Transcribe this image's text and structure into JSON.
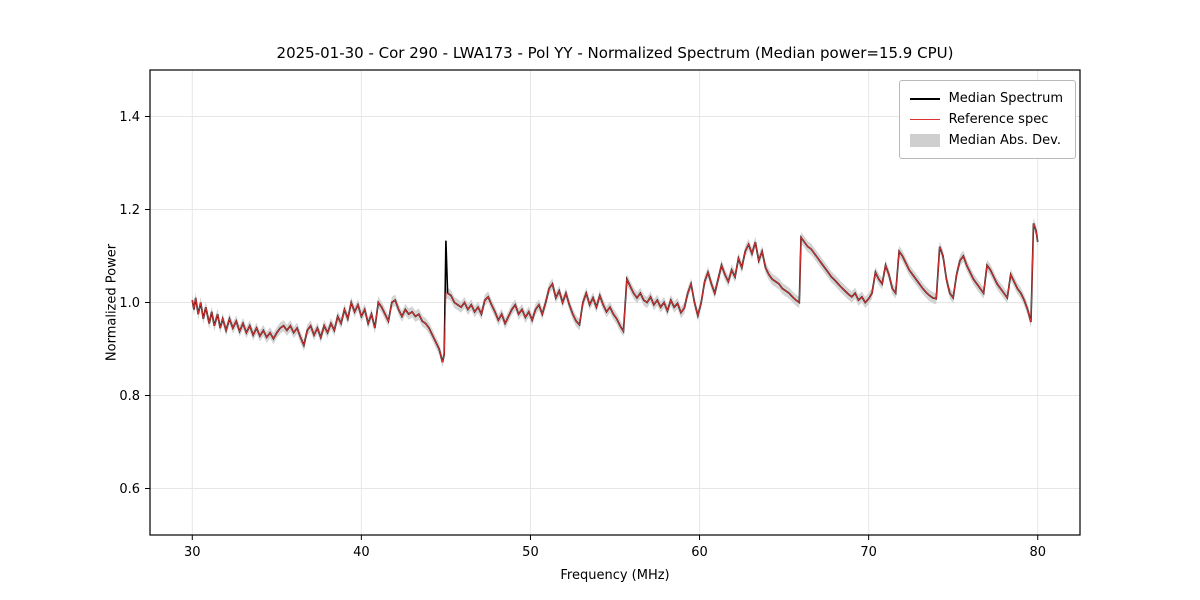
{
  "chart_data": {
    "type": "line",
    "title": "2025-01-30 - Cor 290 - LWA173 - Pol YY - Normalized Spectrum (Median power=15.9 CPU)",
    "xlabel": "Frequency (MHz)",
    "ylabel": "Normalized Power",
    "axes": {
      "xlim": [
        27.5,
        82.5
      ],
      "ylim": [
        0.5,
        1.5
      ],
      "xticks": [
        30,
        40,
        50,
        60,
        70,
        80
      ],
      "xtick_labels": [
        "30",
        "40",
        "50",
        "60",
        "70",
        "80"
      ],
      "yticks": [
        0.6,
        0.8,
        1.0,
        1.2,
        1.4
      ],
      "ytick_labels": [
        "0.6",
        "0.8",
        "1.0",
        "1.2",
        "1.4"
      ],
      "grid": true,
      "legend_position": "upper right"
    },
    "colors": {
      "median_line": "#000000",
      "reference_line": "#dd3333",
      "band_fill": "#cfcfcf",
      "grid": "#e6e6e6",
      "spine": "#000000"
    },
    "legend": [
      {
        "label": "Median Spectrum",
        "type": "line",
        "color": "#000000",
        "lw": 2
      },
      {
        "label": "Reference spec",
        "type": "line",
        "color": "#dd3333",
        "lw": 1
      },
      {
        "label": "Median Abs. Dev.",
        "type": "band",
        "color": "#cfcfcf"
      }
    ],
    "series": [
      {
        "name": "Median Spectrum",
        "points": [
          [
            30.0,
            1.005
          ],
          [
            30.1,
            0.985
          ],
          [
            30.2,
            1.01
          ],
          [
            30.35,
            0.975
          ],
          [
            30.5,
            1.0
          ],
          [
            30.65,
            0.965
          ],
          [
            30.8,
            0.99
          ],
          [
            31.0,
            0.955
          ],
          [
            31.15,
            0.98
          ],
          [
            31.3,
            0.95
          ],
          [
            31.5,
            0.975
          ],
          [
            31.65,
            0.945
          ],
          [
            31.8,
            0.965
          ],
          [
            32.0,
            0.94
          ],
          [
            32.2,
            0.965
          ],
          [
            32.4,
            0.945
          ],
          [
            32.6,
            0.96
          ],
          [
            32.8,
            0.938
          ],
          [
            33.0,
            0.955
          ],
          [
            33.2,
            0.935
          ],
          [
            33.4,
            0.95
          ],
          [
            33.6,
            0.93
          ],
          [
            33.8,
            0.945
          ],
          [
            34.0,
            0.928
          ],
          [
            34.2,
            0.94
          ],
          [
            34.4,
            0.925
          ],
          [
            34.6,
            0.935
          ],
          [
            34.8,
            0.922
          ],
          [
            35.0,
            0.935
          ],
          [
            35.2,
            0.945
          ],
          [
            35.4,
            0.95
          ],
          [
            35.6,
            0.94
          ],
          [
            35.8,
            0.95
          ],
          [
            36.0,
            0.935
          ],
          [
            36.2,
            0.945
          ],
          [
            36.4,
            0.925
          ],
          [
            36.6,
            0.908
          ],
          [
            36.8,
            0.94
          ],
          [
            37.0,
            0.95
          ],
          [
            37.2,
            0.93
          ],
          [
            37.4,
            0.945
          ],
          [
            37.6,
            0.925
          ],
          [
            37.8,
            0.95
          ],
          [
            38.0,
            0.935
          ],
          [
            38.2,
            0.955
          ],
          [
            38.4,
            0.94
          ],
          [
            38.6,
            0.97
          ],
          [
            38.8,
            0.955
          ],
          [
            39.0,
            0.985
          ],
          [
            39.2,
            0.965
          ],
          [
            39.4,
            1.0
          ],
          [
            39.6,
            0.98
          ],
          [
            39.8,
            0.995
          ],
          [
            40.0,
            0.97
          ],
          [
            40.2,
            0.985
          ],
          [
            40.4,
            0.955
          ],
          [
            40.6,
            0.975
          ],
          [
            40.8,
            0.945
          ],
          [
            41.0,
            1.0
          ],
          [
            41.2,
            0.99
          ],
          [
            41.4,
            0.975
          ],
          [
            41.6,
            0.96
          ],
          [
            41.8,
            1.0
          ],
          [
            42.0,
            1.005
          ],
          [
            42.2,
            0.985
          ],
          [
            42.4,
            0.97
          ],
          [
            42.6,
            0.985
          ],
          [
            42.8,
            0.975
          ],
          [
            43.0,
            0.98
          ],
          [
            43.2,
            0.97
          ],
          [
            43.4,
            0.975
          ],
          [
            43.6,
            0.96
          ],
          [
            43.8,
            0.955
          ],
          [
            44.0,
            0.945
          ],
          [
            44.2,
            0.93
          ],
          [
            44.4,
            0.915
          ],
          [
            44.6,
            0.9
          ],
          [
            44.8,
            0.872
          ],
          [
            44.9,
            0.888
          ],
          [
            45.0,
            1.133
          ],
          [
            45.1,
            1.02
          ],
          [
            45.3,
            1.015
          ],
          [
            45.5,
            1.0
          ],
          [
            45.7,
            0.995
          ],
          [
            45.9,
            0.99
          ],
          [
            46.1,
            1.0
          ],
          [
            46.3,
            0.985
          ],
          [
            46.5,
            0.995
          ],
          [
            46.7,
            0.98
          ],
          [
            46.9,
            0.99
          ],
          [
            47.1,
            0.975
          ],
          [
            47.3,
            1.005
          ],
          [
            47.5,
            1.012
          ],
          [
            47.7,
            0.995
          ],
          [
            47.9,
            0.98
          ],
          [
            48.1,
            0.962
          ],
          [
            48.3,
            0.975
          ],
          [
            48.5,
            0.955
          ],
          [
            48.7,
            0.97
          ],
          [
            48.9,
            0.985
          ],
          [
            49.1,
            0.995
          ],
          [
            49.3,
            0.975
          ],
          [
            49.5,
            0.985
          ],
          [
            49.7,
            0.968
          ],
          [
            49.9,
            0.98
          ],
          [
            50.1,
            0.962
          ],
          [
            50.3,
            0.985
          ],
          [
            50.5,
            0.995
          ],
          [
            50.7,
            0.975
          ],
          [
            50.9,
            1.0
          ],
          [
            51.1,
            1.03
          ],
          [
            51.3,
            1.04
          ],
          [
            51.5,
            1.01
          ],
          [
            51.7,
            1.025
          ],
          [
            51.9,
            1.0
          ],
          [
            52.1,
            1.02
          ],
          [
            52.3,
            0.995
          ],
          [
            52.5,
            0.975
          ],
          [
            52.7,
            0.96
          ],
          [
            52.9,
            0.952
          ],
          [
            53.1,
            1.0
          ],
          [
            53.3,
            1.02
          ],
          [
            53.5,
            0.995
          ],
          [
            53.7,
            1.01
          ],
          [
            53.9,
            0.99
          ],
          [
            54.1,
            1.015
          ],
          [
            54.3,
            0.995
          ],
          [
            54.5,
            0.98
          ],
          [
            54.7,
            0.99
          ],
          [
            54.9,
            0.975
          ],
          [
            55.1,
            0.965
          ],
          [
            55.3,
            0.95
          ],
          [
            55.5,
            0.938
          ],
          [
            55.7,
            1.05
          ],
          [
            55.9,
            1.035
          ],
          [
            56.1,
            1.02
          ],
          [
            56.3,
            1.01
          ],
          [
            56.5,
            1.02
          ],
          [
            56.7,
            1.005
          ],
          [
            56.9,
            1.0
          ],
          [
            57.1,
            1.012
          ],
          [
            57.3,
            0.995
          ],
          [
            57.5,
            1.005
          ],
          [
            57.7,
            0.99
          ],
          [
            57.9,
            1.0
          ],
          [
            58.1,
            0.982
          ],
          [
            58.3,
            1.005
          ],
          [
            58.5,
            0.99
          ],
          [
            58.7,
            0.998
          ],
          [
            58.9,
            0.978
          ],
          [
            59.1,
            0.988
          ],
          [
            59.3,
            1.02
          ],
          [
            59.5,
            1.04
          ],
          [
            59.7,
            1.0
          ],
          [
            59.9,
            0.972
          ],
          [
            60.1,
            1.0
          ],
          [
            60.3,
            1.045
          ],
          [
            60.5,
            1.065
          ],
          [
            60.7,
            1.04
          ],
          [
            60.9,
            1.02
          ],
          [
            61.1,
            1.05
          ],
          [
            61.3,
            1.08
          ],
          [
            61.5,
            1.06
          ],
          [
            61.7,
            1.045
          ],
          [
            61.9,
            1.07
          ],
          [
            62.1,
            1.055
          ],
          [
            62.3,
            1.095
          ],
          [
            62.5,
            1.075
          ],
          [
            62.7,
            1.11
          ],
          [
            62.9,
            1.125
          ],
          [
            63.1,
            1.105
          ],
          [
            63.3,
            1.13
          ],
          [
            63.5,
            1.09
          ],
          [
            63.7,
            1.11
          ],
          [
            63.9,
            1.075
          ],
          [
            64.1,
            1.06
          ],
          [
            64.3,
            1.05
          ],
          [
            64.5,
            1.045
          ],
          [
            64.7,
            1.04
          ],
          [
            64.9,
            1.03
          ],
          [
            65.1,
            1.025
          ],
          [
            65.3,
            1.02
          ],
          [
            65.5,
            1.012
          ],
          [
            65.7,
            1.005
          ],
          [
            65.9,
            1.0
          ],
          [
            66.0,
            1.14
          ],
          [
            66.2,
            1.13
          ],
          [
            66.4,
            1.12
          ],
          [
            66.6,
            1.115
          ],
          [
            66.8,
            1.105
          ],
          [
            67.0,
            1.095
          ],
          [
            67.2,
            1.085
          ],
          [
            67.4,
            1.075
          ],
          [
            67.6,
            1.065
          ],
          [
            67.8,
            1.055
          ],
          [
            68.0,
            1.048
          ],
          [
            68.2,
            1.04
          ],
          [
            68.4,
            1.032
          ],
          [
            68.6,
            1.025
          ],
          [
            68.8,
            1.018
          ],
          [
            69.0,
            1.012
          ],
          [
            69.2,
            1.02
          ],
          [
            69.4,
            1.005
          ],
          [
            69.6,
            1.012
          ],
          [
            69.8,
            1.0
          ],
          [
            70.0,
            1.008
          ],
          [
            70.2,
            1.02
          ],
          [
            70.4,
            1.065
          ],
          [
            70.6,
            1.05
          ],
          [
            70.8,
            1.04
          ],
          [
            71.0,
            1.08
          ],
          [
            71.2,
            1.06
          ],
          [
            71.4,
            1.03
          ],
          [
            71.6,
            1.02
          ],
          [
            71.8,
            1.11
          ],
          [
            72.0,
            1.1
          ],
          [
            72.2,
            1.085
          ],
          [
            72.4,
            1.07
          ],
          [
            72.6,
            1.06
          ],
          [
            72.8,
            1.05
          ],
          [
            73.0,
            1.04
          ],
          [
            73.2,
            1.03
          ],
          [
            73.4,
            1.022
          ],
          [
            73.6,
            1.015
          ],
          [
            73.8,
            1.01
          ],
          [
            74.0,
            1.008
          ],
          [
            74.2,
            1.12
          ],
          [
            74.4,
            1.1
          ],
          [
            74.6,
            1.05
          ],
          [
            74.8,
            1.02
          ],
          [
            75.0,
            1.01
          ],
          [
            75.2,
            1.06
          ],
          [
            75.4,
            1.09
          ],
          [
            75.6,
            1.1
          ],
          [
            75.8,
            1.08
          ],
          [
            76.0,
            1.065
          ],
          [
            76.2,
            1.05
          ],
          [
            76.4,
            1.04
          ],
          [
            76.6,
            1.03
          ],
          [
            76.8,
            1.02
          ],
          [
            77.0,
            1.08
          ],
          [
            77.2,
            1.07
          ],
          [
            77.4,
            1.055
          ],
          [
            77.6,
            1.04
          ],
          [
            77.8,
            1.03
          ],
          [
            78.0,
            1.02
          ],
          [
            78.2,
            1.01
          ],
          [
            78.4,
            1.06
          ],
          [
            78.6,
            1.045
          ],
          [
            78.8,
            1.03
          ],
          [
            79.0,
            1.02
          ],
          [
            79.2,
            1.005
          ],
          [
            79.4,
            0.985
          ],
          [
            79.6,
            0.958
          ],
          [
            79.75,
            1.17
          ],
          [
            79.9,
            1.155
          ],
          [
            80.0,
            1.13
          ]
        ]
      },
      {
        "name": "Reference spec",
        "note": "overlaps Median Spectrum everywhere except the 45 MHz spike",
        "override_at_x": 45.0,
        "override_value": 1.02
      },
      {
        "name": "Median Abs. Dev.",
        "band_halfwidth": 0.012
      }
    ]
  }
}
